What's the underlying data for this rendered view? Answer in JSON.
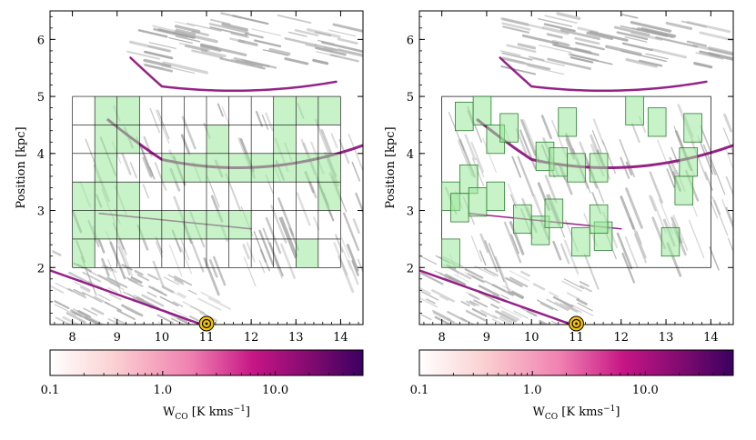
{
  "chart_data": [
    {
      "type": "map",
      "panel": "left",
      "description_axes": true,
      "xlabel": "",
      "ylabel": "Position [kpc]",
      "xlim": [
        7.5,
        14.5
      ],
      "ylim": [
        1.0,
        6.5
      ],
      "xticks": [
        8,
        9,
        10,
        11,
        12,
        13,
        14
      ],
      "yticks": [
        2,
        3,
        4,
        5,
        6
      ],
      "sun_marker": {
        "x": 11.0,
        "y": 1.0
      },
      "grid_region": {
        "x": [
          8.0,
          14.0
        ],
        "y": [
          2.0,
          5.0
        ],
        "cell_x": 0.5,
        "cell_y": 0.5
      },
      "highlighted_cells": [
        [
          8.5,
          4.5
        ],
        [
          9.0,
          4.5
        ],
        [
          12.5,
          4.5
        ],
        [
          13.0,
          4.5
        ],
        [
          13.5,
          4.5
        ],
        [
          8.5,
          4.0
        ],
        [
          9.0,
          4.0
        ],
        [
          11.0,
          4.0
        ],
        [
          12.5,
          4.0
        ],
        [
          8.5,
          3.5
        ],
        [
          10.0,
          3.5
        ],
        [
          10.5,
          3.5
        ],
        [
          11.0,
          3.5
        ],
        [
          11.5,
          3.5
        ],
        [
          12.0,
          3.5
        ],
        [
          12.5,
          3.5
        ],
        [
          13.0,
          3.5
        ],
        [
          13.5,
          3.5
        ],
        [
          8.0,
          3.0
        ],
        [
          8.5,
          3.0
        ],
        [
          9.0,
          3.0
        ],
        [
          13.5,
          3.0
        ],
        [
          8.0,
          2.5
        ],
        [
          8.5,
          2.5
        ],
        [
          9.0,
          2.5
        ],
        [
          9.5,
          2.5
        ],
        [
          10.0,
          2.5
        ],
        [
          10.5,
          2.5
        ],
        [
          11.0,
          2.5
        ],
        [
          11.5,
          2.5
        ],
        [
          8.0,
          2.0
        ],
        [
          13.0,
          2.0
        ]
      ],
      "colorbar": {
        "label": "W",
        "label_sub": "CO",
        "label_unit": " [K kms",
        "label_exp": "−1",
        "label_close": "]",
        "scale": "log",
        "range": [
          0.1,
          60
        ],
        "ticks": [
          0.1,
          1.0,
          10.0
        ],
        "tick_labels": [
          "0.1",
          "1.0",
          "10.0"
        ],
        "colors": [
          "#ffffff",
          "#fbd2d2",
          "#f080b0",
          "#c71585",
          "#7a0a6e",
          "#3a0060"
        ]
      }
    },
    {
      "type": "map",
      "panel": "right",
      "xlabel": "",
      "ylabel": "Position [kpc]",
      "xlim": [
        7.5,
        14.5
      ],
      "ylim": [
        1.0,
        6.5
      ],
      "xticks": [
        8,
        9,
        10,
        11,
        12,
        13,
        14
      ],
      "yticks": [
        2,
        3,
        4,
        5,
        6
      ],
      "sun_marker": {
        "x": 11.0,
        "y": 1.0
      },
      "outline_region": {
        "x": [
          8.0,
          14.0
        ],
        "y": [
          2.0,
          5.0
        ]
      },
      "boxes": [
        {
          "x0": 8.3,
          "x1": 8.7,
          "y0": 4.4,
          "y1": 4.9
        },
        {
          "x0": 8.7,
          "x1": 9.1,
          "y0": 4.5,
          "y1": 5.0
        },
        {
          "x0": 9.0,
          "x1": 9.4,
          "y0": 4.0,
          "y1": 4.5
        },
        {
          "x0": 9.3,
          "x1": 9.7,
          "y0": 4.2,
          "y1": 4.7
        },
        {
          "x0": 10.1,
          "x1": 10.5,
          "y0": 3.7,
          "y1": 4.2
        },
        {
          "x0": 10.4,
          "x1": 10.8,
          "y0": 3.6,
          "y1": 4.1
        },
        {
          "x0": 10.6,
          "x1": 11.0,
          "y0": 4.3,
          "y1": 4.8
        },
        {
          "x0": 10.8,
          "x1": 11.2,
          "y0": 3.5,
          "y1": 4.0
        },
        {
          "x0": 11.3,
          "x1": 11.7,
          "y0": 3.5,
          "y1": 4.0
        },
        {
          "x0": 12.1,
          "x1": 12.5,
          "y0": 4.5,
          "y1": 5.0
        },
        {
          "x0": 12.6,
          "x1": 13.0,
          "y0": 4.3,
          "y1": 4.8
        },
        {
          "x0": 13.4,
          "x1": 13.8,
          "y0": 4.2,
          "y1": 4.7
        },
        {
          "x0": 13.3,
          "x1": 13.7,
          "y0": 3.6,
          "y1": 4.1
        },
        {
          "x0": 13.2,
          "x1": 13.6,
          "y0": 3.1,
          "y1": 3.6
        },
        {
          "x0": 8.0,
          "x1": 8.4,
          "y0": 3.0,
          "y1": 3.5
        },
        {
          "x0": 8.2,
          "x1": 8.6,
          "y0": 2.8,
          "y1": 3.3
        },
        {
          "x0": 8.4,
          "x1": 8.8,
          "y0": 3.3,
          "y1": 3.8
        },
        {
          "x0": 8.6,
          "x1": 9.0,
          "y0": 2.9,
          "y1": 3.4
        },
        {
          "x0": 9.0,
          "x1": 9.4,
          "y0": 3.0,
          "y1": 3.5
        },
        {
          "x0": 9.6,
          "x1": 10.0,
          "y0": 2.6,
          "y1": 3.1
        },
        {
          "x0": 10.0,
          "x1": 10.4,
          "y0": 2.4,
          "y1": 2.9
        },
        {
          "x0": 10.3,
          "x1": 10.7,
          "y0": 2.7,
          "y1": 3.2
        },
        {
          "x0": 10.9,
          "x1": 11.3,
          "y0": 2.2,
          "y1": 2.7
        },
        {
          "x0": 11.4,
          "x1": 11.8,
          "y0": 2.3,
          "y1": 2.8
        },
        {
          "x0": 11.3,
          "x1": 11.7,
          "y0": 2.6,
          "y1": 3.1
        },
        {
          "x0": 12.9,
          "x1": 13.3,
          "y0": 2.2,
          "y1": 2.7
        },
        {
          "x0": 8.0,
          "x1": 8.4,
          "y0": 2.0,
          "y1": 2.5
        }
      ],
      "colorbar": {
        "label": "W",
        "label_sub": "CO",
        "label_unit": " [K kms",
        "label_exp": "−1",
        "label_close": "]",
        "scale": "log",
        "range": [
          0.1,
          60
        ],
        "ticks": [
          0.1,
          1.0,
          10.0
        ],
        "tick_labels": [
          "0.1",
          "1.0",
          "10.0"
        ],
        "colors": [
          "#ffffff",
          "#fbd2d2",
          "#f080b0",
          "#c71585",
          "#7a0a6e",
          "#3a0060"
        ]
      }
    }
  ],
  "colors": {
    "cell_fill": "#9be89b",
    "cell_stroke": "#2e7d32",
    "arm": "#8b0a7a",
    "gas": "#555555",
    "sun": "#f5c400"
  }
}
